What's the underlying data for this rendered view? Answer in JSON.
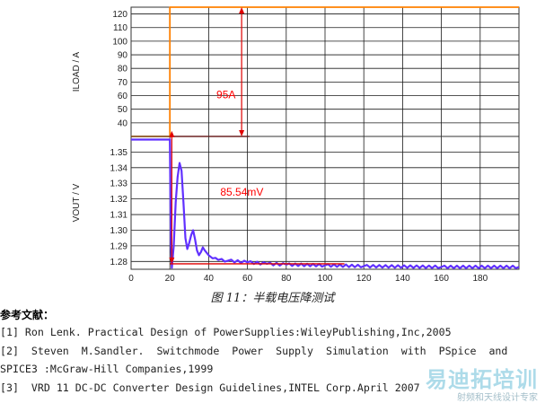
{
  "chart_data": {
    "type": "line",
    "xlim": [
      0,
      200
    ],
    "x_ticks": [
      0,
      20,
      40,
      60,
      80,
      100,
      120,
      140,
      160,
      180
    ],
    "grid": true,
    "panels": [
      {
        "ylabel": "ILOAD / A",
        "ylim": [
          30,
          125
        ],
        "y_ticks": [
          40,
          50,
          60,
          70,
          80,
          90,
          100,
          110,
          120
        ],
        "series": [
          {
            "color": "#ff8000",
            "points": [
              [
                0,
                30
              ],
              [
                20,
                30
              ],
              [
                20,
                125
              ],
              [
                200,
                125
              ]
            ]
          }
        ],
        "annotation": {
          "text": "95A",
          "x": 57,
          "y_from": 30,
          "y_to": 125,
          "label_x": 44,
          "label_y": 58
        }
      },
      {
        "ylabel": "VOUT / V",
        "ylim": [
          1.275,
          1.36
        ],
        "y_ticks": [
          1.28,
          1.29,
          1.3,
          1.31,
          1.32,
          1.33,
          1.34,
          1.35
        ],
        "series": [
          {
            "color": "#6030ff",
            "points": [
              [
                0,
                1.358
              ],
              [
                20,
                1.358
              ],
              [
                20.5,
                1.29
              ],
              [
                21,
                1.276
              ],
              [
                22,
                1.29
              ],
              [
                23,
                1.318
              ],
              [
                24,
                1.334
              ],
              [
                25,
                1.343
              ],
              [
                26,
                1.338
              ],
              [
                27,
                1.318
              ],
              [
                28,
                1.295
              ],
              [
                29,
                1.288
              ],
              [
                30,
                1.292
              ],
              [
                31,
                1.297
              ],
              [
                32,
                1.3
              ],
              [
                33,
                1.294
              ],
              [
                34,
                1.287
              ],
              [
                35,
                1.284
              ],
              [
                36,
                1.286
              ],
              [
                37,
                1.289
              ],
              [
                38,
                1.287
              ],
              [
                40,
                1.284
              ],
              [
                42,
                1.282
              ],
              [
                45,
                1.281
              ],
              [
                50,
                1.2805
              ],
              [
                60,
                1.2795
              ],
              [
                70,
                1.2785
              ],
              [
                80,
                1.278
              ],
              [
                100,
                1.2775
              ],
              [
                120,
                1.277
              ],
              [
                160,
                1.2765
              ],
              [
                200,
                1.2765
              ]
            ],
            "ripple": 0.0008
          }
        ],
        "annotation": {
          "text": "85.54mV",
          "x": 21,
          "y_from": 1.2785,
          "y_to": 1.3635,
          "label_x": 46,
          "label_y": 1.322
        }
      }
    ]
  },
  "caption": "图 11：半载电压降测试",
  "references": {
    "title": "参考文献：",
    "items": [
      "[1] Ron Lenk. Practical Design of PowerSupplies:WileyPublishing,Inc,2005",
      "[2]  Steven  M.Sandler.  Switchmode  Power  Supply  Simulation  with  PSpice  and",
      "SPICE3 :McGraw-Hill Companies,1999",
      "[3]  VRD 11 DC-DC Converter Design Guidelines,INTEL Corp.April 2007"
    ]
  },
  "watermark": {
    "title": "易迪拓培训",
    "subtitle": "射频和天线设计专家"
  }
}
